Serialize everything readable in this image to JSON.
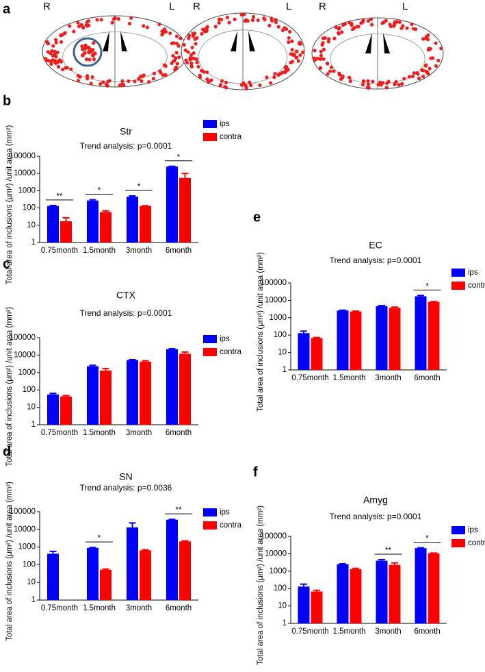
{
  "figure_a": {
    "label": "a",
    "side_labels": [
      "R",
      "L",
      "R",
      "L",
      "R",
      "L"
    ]
  },
  "chart_data": [
    {
      "type": "bar",
      "panel": "b",
      "title": "Str",
      "subtitle": "Trend analysis: p=0.0001",
      "y_label": "Total area of inclusions (μm²) /unit area (mm²)",
      "categories": [
        "0.75month",
        "1.5month",
        "3month",
        "6month"
      ],
      "series": [
        {
          "name": "ips",
          "color": "#0000ff",
          "values": [
            130,
            270,
            450,
            25000
          ],
          "errors": [
            10,
            30,
            50,
            1000
          ]
        },
        {
          "name": "contra",
          "color": "#ff0000",
          "values": [
            17,
            58,
            130,
            5500
          ],
          "errors": [
            10,
            10,
            5,
            4500
          ]
        }
      ],
      "significance": [
        "**",
        "*",
        "*",
        "*"
      ],
      "yscale": "log",
      "ylim": [
        1,
        100000
      ],
      "yticks": [
        1,
        10,
        100,
        1000,
        10000,
        100000
      ]
    },
    {
      "type": "bar",
      "panel": "c",
      "title": "CTX",
      "subtitle": "Trend analysis: p=0.0001",
      "y_label": "Total area of inclusions (μm²) /unit area (mm²)",
      "categories": [
        "0.75month",
        "1.5month",
        "3month",
        "6month"
      ],
      "series": [
        {
          "name": "ips",
          "color": "#0000ff",
          "values": [
            55,
            2300,
            5200,
            22000
          ],
          "errors": [
            8,
            300,
            300,
            1500
          ]
        },
        {
          "name": "contra",
          "color": "#ff0000",
          "values": [
            42,
            1300,
            4200,
            12000
          ],
          "errors": [
            5,
            400,
            500,
            3000
          ]
        }
      ],
      "significance": [
        null,
        null,
        null,
        null
      ],
      "yscale": "log",
      "ylim": [
        1,
        100000
      ],
      "yticks": [
        1,
        10,
        100,
        1000,
        10000,
        100000
      ]
    },
    {
      "type": "bar",
      "panel": "d",
      "title": "SN",
      "subtitle": "Trend analysis: p=0.0036",
      "y_label": "Total area of inclusions (μm²) /unit area (mm²)",
      "categories": [
        "0.75month",
        "1.5month",
        "3month",
        "6month"
      ],
      "series": [
        {
          "name": "ips",
          "color": "#0000ff",
          "values": [
            420,
            900,
            13000,
            35000
          ],
          "errors": [
            150,
            50,
            10000,
            2000
          ]
        },
        {
          "name": "contra",
          "color": "#ff0000",
          "values": [
            null,
            52,
            650,
            2100
          ],
          "errors": [
            null,
            5,
            50,
            150
          ]
        }
      ],
      "significance": [
        null,
        "*",
        null,
        "**"
      ],
      "yscale": "log",
      "ylim": [
        1,
        100000
      ],
      "yticks": [
        1,
        10,
        100,
        1000,
        10000,
        100000
      ]
    },
    {
      "type": "bar",
      "panel": "e",
      "title": "EC",
      "subtitle": "Trend analysis: p=0.0001",
      "y_label": "Total area of inclusions (μm²) /unit area (mm²)",
      "categories": [
        "0.75month",
        "1.5month",
        "3month",
        "6month"
      ],
      "series": [
        {
          "name": "ips",
          "color": "#0000ff",
          "values": [
            130,
            2600,
            4600,
            17000
          ],
          "errors": [
            40,
            100,
            400,
            2000
          ]
        },
        {
          "name": "contra",
          "color": "#ff0000",
          "values": [
            68,
            2300,
            3700,
            8200
          ],
          "errors": [
            5,
            100,
            400,
            300
          ]
        }
      ],
      "significance": [
        null,
        null,
        null,
        "*"
      ],
      "yscale": "log",
      "ylim": [
        1,
        100000
      ],
      "yticks": [
        1,
        10,
        100,
        1000,
        10000,
        100000
      ]
    },
    {
      "type": "bar",
      "panel": "f",
      "title": "Amyg",
      "subtitle": "Trend analysis: p=0.0001",
      "y_label": "Total area of inclusions (μm²) /unit area (mm²)",
      "categories": [
        "0.75month",
        "1.5month",
        "3month",
        "6month"
      ],
      "series": [
        {
          "name": "ips",
          "color": "#0000ff",
          "values": [
            130,
            2500,
            4000,
            21000
          ],
          "errors": [
            50,
            150,
            600,
            1000
          ]
        },
        {
          "name": "contra",
          "color": "#ff0000",
          "values": [
            68,
            1300,
            2300,
            10500
          ],
          "errors": [
            12,
            150,
            700,
            500
          ]
        }
      ],
      "significance": [
        null,
        null,
        "**",
        "*"
      ],
      "yscale": "log",
      "ylim": [
        1,
        100000
      ],
      "yticks": [
        1,
        10,
        100,
        1000,
        10000,
        100000
      ]
    }
  ]
}
